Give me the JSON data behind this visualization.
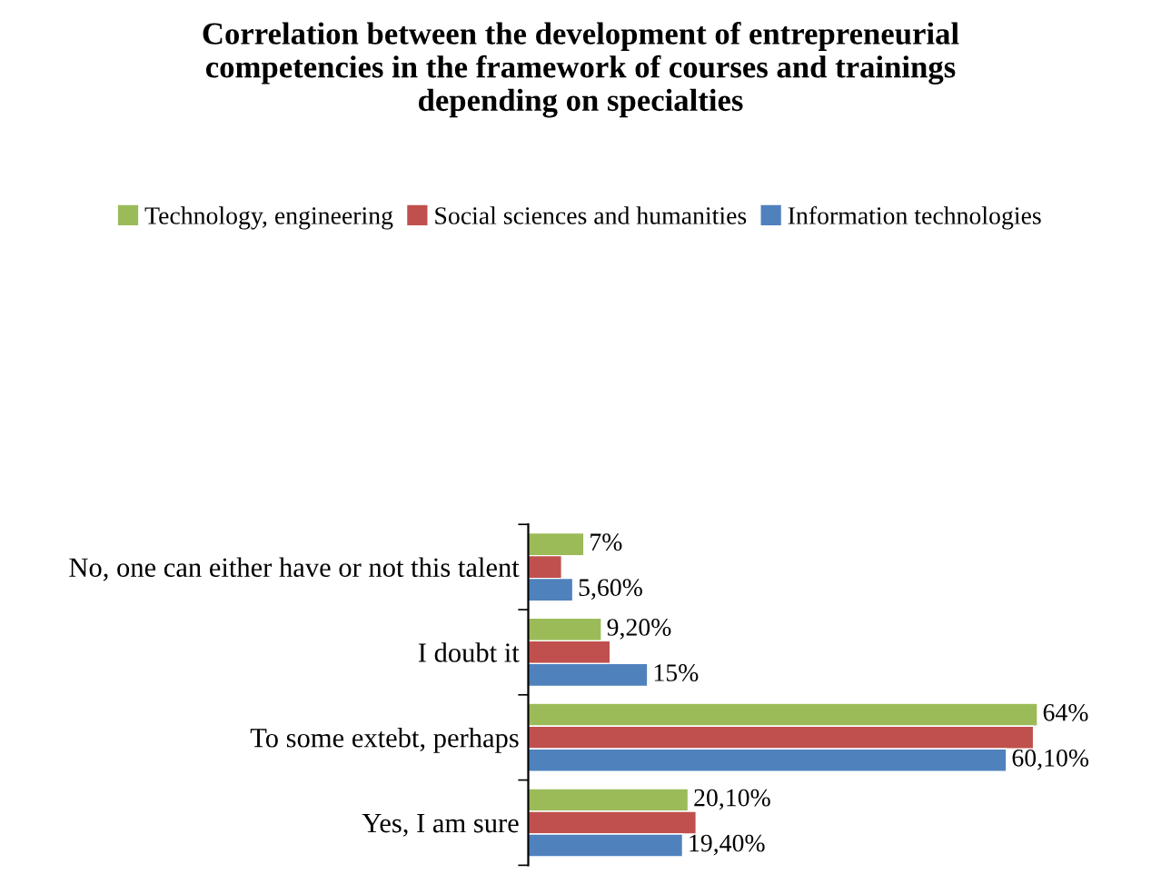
{
  "chart_data": {
    "type": "bar",
    "orientation": "horizontal",
    "title": "Correlation between the development of entrepreneurial\ncompetencies in the framework of courses and trainings\ndepending on specialties",
    "categories": [
      "No, one can either have or not this talent",
      "I doubt it",
      "To some extebt, perhaps",
      "Yes, I am sure"
    ],
    "series": [
      {
        "name": "Technology, engineering",
        "color": "#9bbb59",
        "values": [
          7,
          9.2,
          64,
          20.1
        ],
        "value_labels": [
          "7%",
          "9,20%",
          "64%",
          "20,10%"
        ]
      },
      {
        "name": "Social sciences and humanities",
        "color": "#c0504d",
        "values": [
          4.2,
          10.3,
          63.5,
          21.1
        ]
      },
      {
        "name": "Information technologies",
        "color": "#4f81bd",
        "values": [
          5.6,
          15,
          60.1,
          19.4
        ],
        "value_labels": [
          "5,60%",
          "15%",
          "60,10%",
          "19,40%"
        ]
      }
    ],
    "legend": "top",
    "tick_labels": "y"
  }
}
